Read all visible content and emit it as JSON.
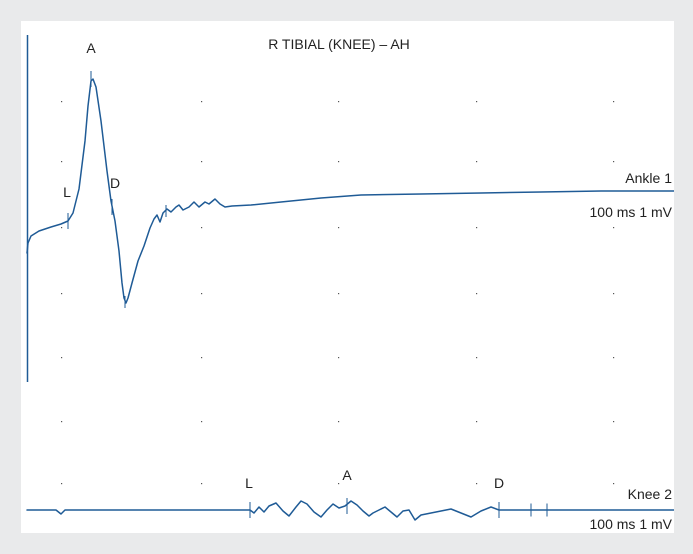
{
  "title": "R TIBIAL (KNEE) – AH",
  "colors": {
    "trace": "#1f5b96",
    "text": "#222222",
    "grid": "#555555",
    "background": "#e9eaeb",
    "panel": "#ffffff"
  },
  "chart_data": {
    "type": "line",
    "title": "R TIBIAL (KNEE) – AH",
    "grid": true,
    "channels": [
      {
        "name": "Ankle 1",
        "scale": "100 ms 1 mV",
        "markers": [
          {
            "label": "L"
          },
          {
            "label": "A"
          },
          {
            "label": "D"
          },
          {
            "label": ""
          },
          {
            "label": ""
          }
        ]
      },
      {
        "name": "Knee 2",
        "scale": "100 ms 1 mV",
        "markers": [
          {
            "label": "L"
          },
          {
            "label": "A"
          },
          {
            "label": "D"
          },
          {
            "label": ""
          },
          {
            "label": ""
          }
        ]
      }
    ]
  }
}
